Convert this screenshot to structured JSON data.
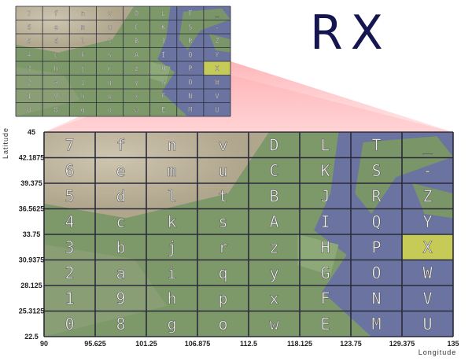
{
  "code": "RX",
  "grid": {
    "rows": [
      [
        "7",
        "f",
        "n",
        "v",
        "D",
        "L",
        "T",
        "_"
      ],
      [
        "6",
        "e",
        "m",
        "u",
        "C",
        "K",
        "S",
        "-"
      ],
      [
        "5",
        "d",
        "l",
        "t",
        "B",
        "J",
        "R",
        "Z"
      ],
      [
        "4",
        "c",
        "k",
        "s",
        "A",
        "I",
        "Q",
        "Y"
      ],
      [
        "3",
        "b",
        "j",
        "r",
        "z",
        "H",
        "P",
        "X"
      ],
      [
        "2",
        "a",
        "i",
        "q",
        "y",
        "G",
        "O",
        "W"
      ],
      [
        "1",
        "9",
        "h",
        "p",
        "x",
        "F",
        "N",
        "V"
      ],
      [
        "0",
        "8",
        "g",
        "o",
        "w",
        "E",
        "M",
        "U"
      ]
    ],
    "highlight": {
      "row": 4,
      "col": 7
    }
  },
  "axes": {
    "latitude_title": "Latitude",
    "longitude_title": "Longitude",
    "latitude_ticks": [
      "45",
      "42.1875",
      "39.375",
      "36.5625",
      "33.75",
      "30.9375",
      "28.125",
      "25.3125",
      "22.5"
    ],
    "longitude_ticks": [
      "90",
      "95.625",
      "101.25",
      "106.875",
      "112.5",
      "118.125",
      "123.75",
      "129.375",
      "135"
    ]
  },
  "colors": {
    "land_green": "#6f8d58",
    "land_tan": "#b9ad95",
    "sea_blue": "#5b6596",
    "grid_line": "#2a2a3a",
    "glyph": "#f4f4f4",
    "highlight": "#d6d94a",
    "zoom_cone": "#ff9aa0",
    "title": "#15154f"
  }
}
